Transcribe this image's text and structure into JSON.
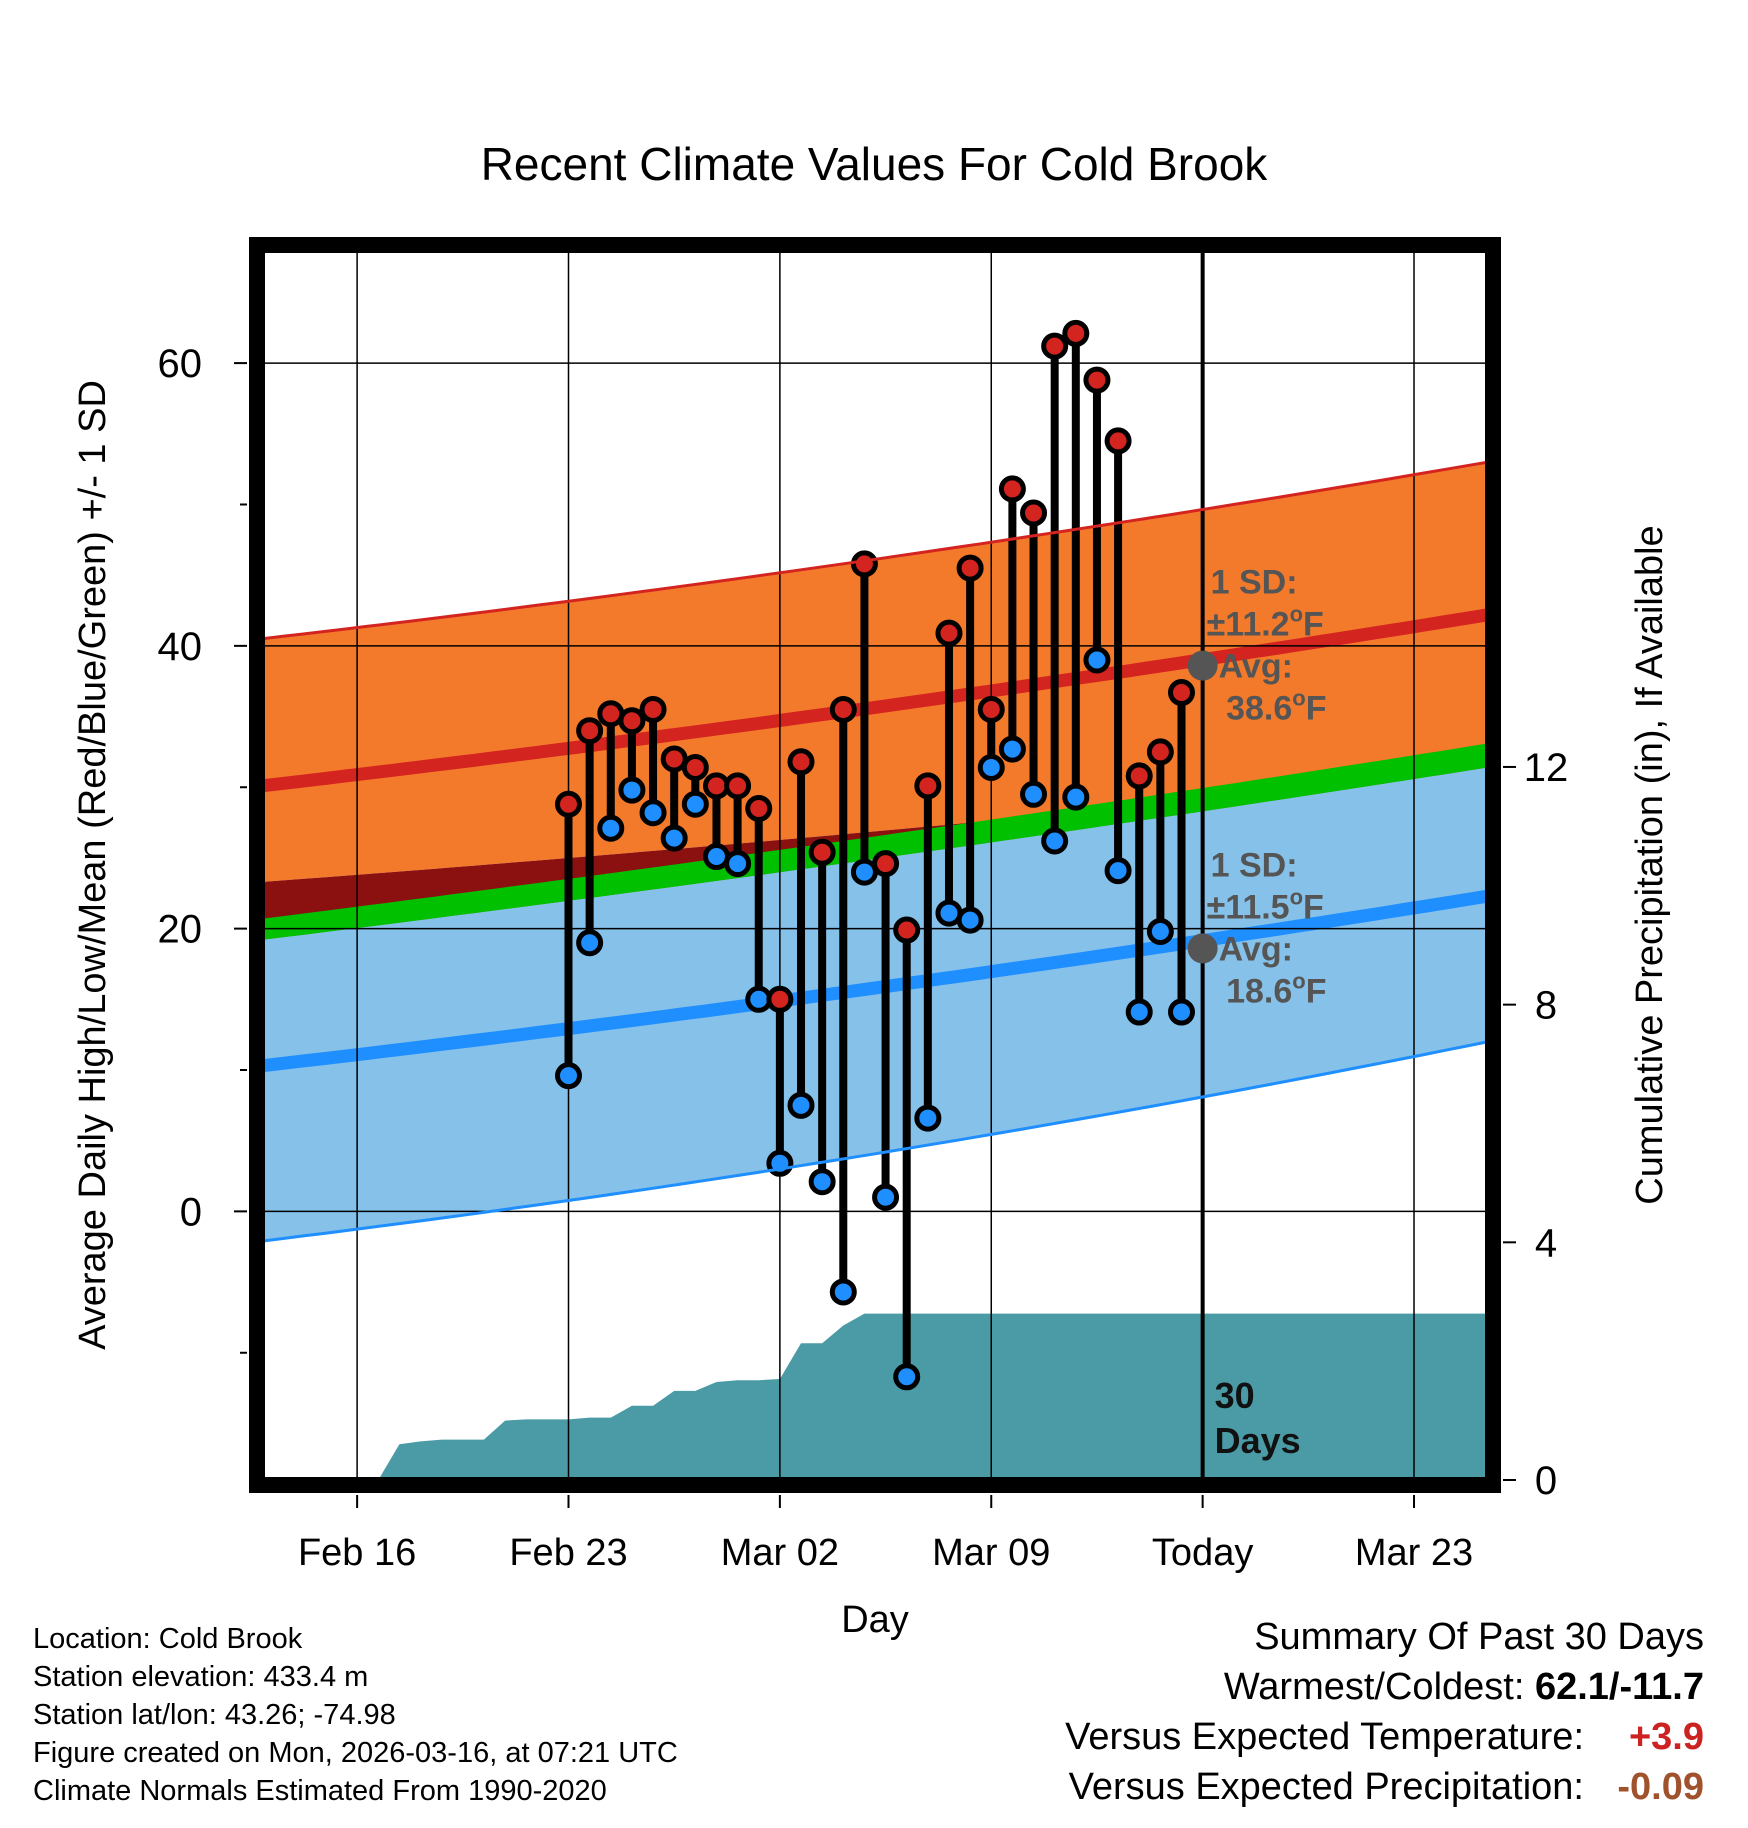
{
  "chart_data": {
    "type": "line",
    "title": "Recent Climate Values For Cold Brook",
    "xlabel": "Day",
    "ylabel": "Average Daily High/Low/Mean (Red/Blue/Green) +/- 1 SD",
    "ylabel_right": "Cumulative Precipitation (in), If Available",
    "ylim": [
      -19,
      68
    ],
    "ylim_right": [
      0,
      20.7
    ],
    "xlim": [
      -0.5,
      57.5
    ],
    "x_tick_labels": [
      {
        "x": 4,
        "label": "Feb 16"
      },
      {
        "x": 14,
        "label": "Feb 23"
      },
      {
        "x": 24,
        "label": "Mar 02"
      },
      {
        "x": 34,
        "label": "Mar 09"
      },
      {
        "x": 44,
        "label": "Today"
      },
      {
        "x": 54,
        "label": "Mar 23"
      }
    ],
    "y_ticks": [
      0,
      20,
      40,
      60
    ],
    "y_minor_ticks": [
      -10,
      10,
      30,
      50
    ],
    "y_right_ticks": [
      0,
      4,
      8,
      12
    ],
    "today_index": 44,
    "today_label": [
      "30",
      "Days"
    ],
    "high_daily": [
      28.8,
      34.0,
      35.2,
      34.7,
      35.5,
      32.0,
      31.4,
      30.1,
      30.1,
      28.5,
      15.0,
      31.8,
      25.4,
      35.5,
      45.8,
      24.6,
      19.9,
      30.1,
      40.9,
      45.5,
      35.5,
      51.1,
      49.4,
      61.2,
      62.1,
      58.8,
      54.5,
      30.8,
      32.5,
      36.7
    ],
    "low_daily": [
      9.6,
      19.0,
      27.1,
      29.8,
      28.2,
      26.4,
      28.8,
      25.1,
      24.6,
      15.0,
      3.4,
      7.5,
      2.1,
      -5.7,
      24.0,
      1.0,
      -11.7,
      6.6,
      21.1,
      20.6,
      31.4,
      32.7,
      29.5,
      26.2,
      29.3,
      39.0,
      24.1,
      14.1,
      19.8,
      14.1
    ],
    "normal_high_start": 30.1,
    "normal_high_end": 42.2,
    "normal_high_sd": 11.2,
    "normal_low_start": 10.3,
    "normal_low_end": 22.3,
    "normal_low_sd": 11.5,
    "normal_mean_start": 20.2,
    "normal_mean_end": 32.3,
    "high_sd_lower_start": 23.3,
    "high_sd_lower_end": 31.2,
    "low_sd_upper_start": 19.2,
    "low_sd_upper_end": 31.4,
    "low_sd_lower_start": -2.1,
    "low_sd_lower_end": 12.0,
    "cumulative_precip": [
      0,
      0,
      0,
      0,
      0,
      0,
      0.6,
      0.65,
      0.68,
      0.68,
      0.68,
      1.0,
      1.02,
      1.02,
      1.02,
      1.05,
      1.05,
      1.25,
      1.25,
      1.5,
      1.5,
      1.65,
      1.68,
      1.68,
      1.7,
      2.3,
      2.3,
      2.6,
      2.8,
      2.8,
      2.8,
      2.8,
      2.8,
      2.8,
      2.8,
      2.8,
      2.8,
      2.8,
      2.8,
      2.8,
      2.8,
      2.8,
      2.8,
      2.8,
      2.8,
      2.8,
      2.8,
      2.8,
      2.8,
      2.8,
      2.8,
      2.8,
      2.8,
      2.8,
      2.8,
      2.8,
      2.8,
      2.8
    ],
    "high_annotation": {
      "line1": "1 SD:",
      "line2": "±11.2",
      "unit": "o",
      "unit_suffix": "F",
      "line3": "Avg:",
      "line4": " 38.6",
      "avg_value": 38.6
    },
    "low_annotation": {
      "line1": "1 SD:",
      "line2": "±11.5",
      "unit": "o",
      "unit_suffix": "F",
      "line3": "Avg:",
      "line4": " 18.6",
      "avg_value": 18.6
    }
  },
  "colors": {
    "high_band": "#f47a2b",
    "high_line": "#d42420",
    "low_band": "#85c1e9",
    "low_line": "#1f8fff",
    "mean_band": "#00c000",
    "overlap": "#8b1010",
    "precip": "#4a9ba5",
    "annotation": "#555555",
    "high_dot": "#d42420",
    "low_dot": "#1f8fff"
  },
  "info_left": {
    "location": "Location: Cold Brook",
    "elevation": "Station elevation: 433.4 m",
    "latlon": "Station lat/lon: 43.26; -74.98",
    "created": "Figure created on Mon, 2026-03-16, at 07:21 UTC",
    "normals": "Climate Normals Estimated From 1990-2020"
  },
  "summary": {
    "title": "Summary Of Past 30 Days",
    "warmest_label": "Warmest/Coldest: ",
    "warmest_value": "62.1/-11.7",
    "temp_label": "Versus Expected Temperature:",
    "temp_value": "+3.9",
    "prcp_label": "Versus Expected Precipitation:",
    "prcp_value": "-0.09"
  }
}
